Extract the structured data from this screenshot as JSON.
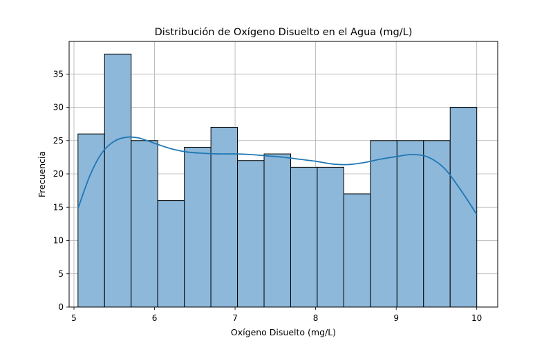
{
  "chart_data": {
    "type": "bar",
    "title": "Distribución de Oxígeno Disuelto en el Agua (mg/L)",
    "xlabel": "Oxígeno Disuelto (mg/L)",
    "ylabel": "Frecuencia",
    "xlim": [
      4.94,
      10.26
    ],
    "ylim": [
      0,
      39.9
    ],
    "xticks": [
      5,
      6,
      7,
      8,
      9,
      10
    ],
    "yticks": [
      0,
      5,
      10,
      15,
      20,
      25,
      30,
      35
    ],
    "grid": true,
    "bin_edges": [
      5.05,
      5.38,
      5.71,
      6.04,
      6.37,
      6.7,
      7.03,
      7.36,
      7.69,
      8.02,
      8.35,
      8.68,
      9.01,
      9.34,
      9.67,
      10.0
    ],
    "values": [
      26,
      38,
      25,
      16,
      24,
      27,
      22,
      23,
      21,
      21,
      17,
      25,
      25,
      25,
      30
    ],
    "bar_color": "#8db8da",
    "kde_color": "#1f77b4",
    "kde": {
      "x": [
        5.05,
        5.2,
        5.35,
        5.5,
        5.65,
        5.8,
        6.0,
        6.2,
        6.4,
        6.6,
        6.8,
        7.0,
        7.2,
        7.4,
        7.6,
        7.8,
        8.0,
        8.2,
        8.4,
        8.6,
        8.8,
        9.0,
        9.2,
        9.4,
        9.6,
        9.8,
        10.0
      ],
      "y": [
        14.8,
        19.8,
        23.2,
        24.9,
        25.5,
        25.4,
        24.6,
        23.8,
        23.3,
        23.1,
        23.0,
        23.0,
        22.9,
        22.7,
        22.5,
        22.2,
        21.9,
        21.5,
        21.4,
        21.7,
        22.2,
        22.6,
        22.9,
        22.5,
        20.8,
        17.6,
        13.9
      ]
    }
  }
}
